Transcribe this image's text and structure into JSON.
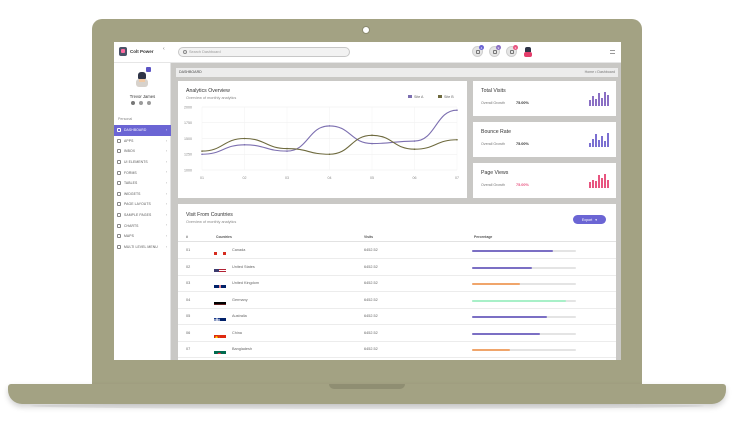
{
  "brand": {
    "name": "Colt Power"
  },
  "search": {
    "placeholder": "Search Dashboard"
  },
  "notifications": {
    "badge_1": "4",
    "badge_2": "9",
    "badge_3": "3"
  },
  "profile": {
    "name": "Trevor James"
  },
  "sidebar": {
    "section_label": "Personal",
    "items": [
      {
        "label": "DASHBOARD",
        "active": true
      },
      {
        "label": "APPS"
      },
      {
        "label": "INBOX"
      },
      {
        "label": "UI ELEMENTS"
      },
      {
        "label": "FORMS"
      },
      {
        "label": "TABLES"
      },
      {
        "label": "WIDGETS"
      },
      {
        "label": "PAGE LAYOUTS"
      },
      {
        "label": "SAMPLE PAGES"
      },
      {
        "label": "CHARTS"
      },
      {
        "label": "MAPS"
      },
      {
        "label": "MULTI LEVEL MENU"
      }
    ]
  },
  "breadcrumb": {
    "title": "DASHBOARD",
    "path": "Home • Dashboard"
  },
  "analytics": {
    "title": "Analytics Overview",
    "subtitle": "Overview of monthly analytics"
  },
  "chart_data": {
    "type": "line",
    "title": "Analytics Overview",
    "x": [
      "01",
      "02",
      "03",
      "04",
      "05",
      "06",
      "07"
    ],
    "ylim": [
      1000,
      2000
    ],
    "yticks": [
      "2000",
      "1750",
      "1500",
      "1250",
      "1000"
    ],
    "legend_position": "top-right",
    "grid": true,
    "series": [
      {
        "name": "Site A",
        "color": "#7c6fb0",
        "values": [
          1250,
          1400,
          1300,
          1700,
          1420,
          1460,
          1950
        ]
      },
      {
        "name": "Site B",
        "color": "#6e6a3e",
        "values": [
          1300,
          1500,
          1340,
          1250,
          1550,
          1330,
          1480
        ]
      }
    ]
  },
  "stats": [
    {
      "title": "Total Visits",
      "growth_label": "Overall Growth",
      "growth_value": "75.00%",
      "color": "#8a6fc4",
      "value_color": "#333333",
      "bars": [
        0.4,
        0.7,
        0.5,
        0.9,
        0.6,
        1.0,
        0.8
      ]
    },
    {
      "title": "Bounce Rate",
      "growth_label": "Overall Growth",
      "growth_value": "75.00%",
      "color": "#7b6fd1",
      "value_color": "#333333",
      "bars": [
        0.3,
        0.6,
        0.9,
        0.5,
        0.8,
        0.4,
        1.0
      ]
    },
    {
      "title": "Page Views",
      "growth_label": "Overall Growth",
      "growth_value": "75.00%",
      "color": "#e85580",
      "value_color": "#e85580",
      "bars": [
        0.4,
        0.6,
        0.5,
        0.9,
        0.7,
        1.0,
        0.6
      ]
    }
  ],
  "countries": {
    "title": "Visit From Countries",
    "subtitle": "Overview of monthly analytics",
    "export_label": "Export",
    "columns": {
      "num": "#",
      "country": "Countries",
      "visits": "Visits",
      "percentage": "Percentage"
    },
    "rows": [
      {
        "num": "01",
        "country": "Canada",
        "visits": "6452.52",
        "flag": "canada",
        "bar_color": "#7b6fc4",
        "pct": 0.78
      },
      {
        "num": "02",
        "country": "United States",
        "visits": "6452.52",
        "flag": "usa",
        "bar_color": "#7b6fc4",
        "pct": 0.58
      },
      {
        "num": "03",
        "country": "United Kingdom",
        "visits": "6452.52",
        "flag": "uk",
        "bar_color": "#f0a56b",
        "pct": 0.46
      },
      {
        "num": "04",
        "country": "Germany",
        "visits": "6452.52",
        "flag": "germany",
        "bar_color": "#a8f0c8",
        "pct": 0.9
      },
      {
        "num": "05",
        "country": "Australia",
        "visits": "6452.52",
        "flag": "australia",
        "bar_color": "#7b6fc4",
        "pct": 0.72
      },
      {
        "num": "06",
        "country": "China",
        "visits": "6452.52",
        "flag": "china",
        "bar_color": "#7b6fc4",
        "pct": 0.65
      },
      {
        "num": "07",
        "country": "Bangladesh",
        "visits": "6452.52",
        "flag": "bangladesh",
        "bar_color": "#f0a56b",
        "pct": 0.37
      }
    ]
  },
  "colors": {
    "accent": "#6b65d4",
    "laptop": "#a3a283",
    "screen_bg": "#c9c8c5"
  }
}
